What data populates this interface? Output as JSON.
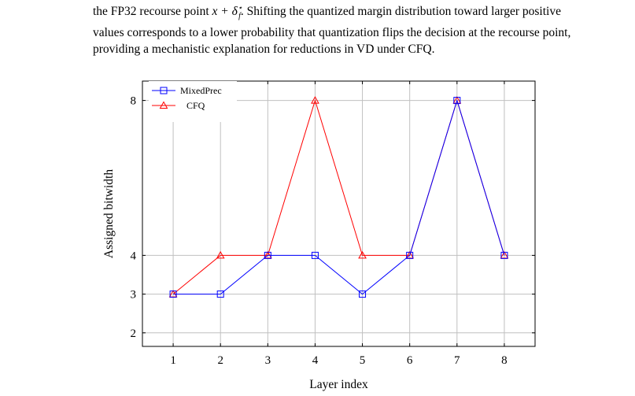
{
  "text": {
    "line1_pre": "the FP32 recourse point ",
    "line1_math": "x + δ",
    "line1_sub": "f",
    "line1_sup": "⋆",
    "line1_post": ". Shifting the quantized margin distribution toward larger positive",
    "line2": "values corresponds to a lower probability that quantization flips the decision at the recourse point,",
    "line3": "providing a mechanistic explanation for reductions in VD under CFQ."
  },
  "colors": {
    "mixedprec": "#0000ff",
    "cfq": "#ff0000",
    "grid": "#c0c0c0",
    "axis": "#000000"
  },
  "chart_data": {
    "type": "line",
    "x": [
      1,
      2,
      3,
      4,
      5,
      6,
      7,
      8
    ],
    "xticks": [
      "1",
      "2",
      "3",
      "4",
      "5",
      "6",
      "7",
      "8"
    ],
    "yticks": [
      "2",
      "3",
      "4",
      "8"
    ],
    "ytick_values": [
      2,
      3,
      4,
      8
    ],
    "xlabel": "Layer index",
    "ylabel": "Assigned bitwidth",
    "xlim": [
      0.35,
      8.65
    ],
    "ylim": [
      1.65,
      8.5
    ],
    "grid": true,
    "legend_position": "top-left",
    "series": [
      {
        "name": "MixedPrec",
        "marker": "square",
        "color": "#0000ff",
        "values": [
          3,
          3,
          4,
          4,
          3,
          4,
          8,
          4
        ]
      },
      {
        "name": "CFQ",
        "marker": "triangle",
        "color": "#ff0000",
        "values": [
          3,
          4,
          4,
          8,
          4,
          4,
          8,
          4
        ]
      }
    ]
  }
}
